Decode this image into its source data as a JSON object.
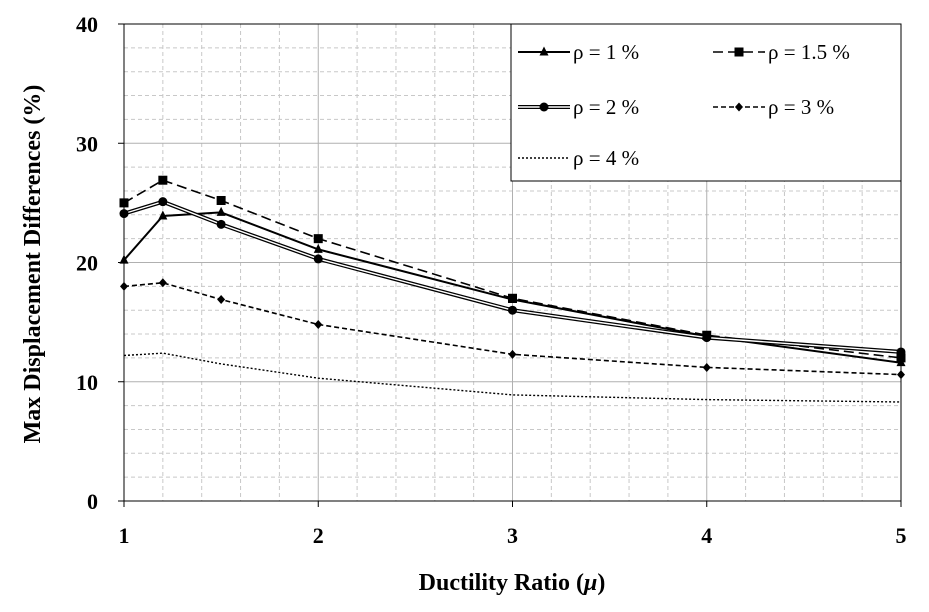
{
  "chart_data": {
    "type": "line",
    "title": "",
    "xlabel": "Ductility Ratio",
    "xlabel_symbol": "μ",
    "ylabel": "Max Displacement Differences (%)",
    "xlim": [
      1,
      5
    ],
    "ylim": [
      0,
      40
    ],
    "xticks": [
      "1",
      "2",
      "3",
      "4",
      "5"
    ],
    "yticks": [
      "0",
      "10",
      "20",
      "30",
      "40"
    ],
    "grid": true,
    "legend_position": "top-right",
    "series": [
      {
        "name": "ρ = 1 %",
        "marker": "triangle",
        "dash": "solid",
        "x": [
          1,
          1.2,
          1.5,
          2,
          3,
          4,
          5
        ],
        "y": [
          20.2,
          23.9,
          24.2,
          21.1,
          16.9,
          13.8,
          11.6
        ]
      },
      {
        "name": "ρ = 1.5 %",
        "marker": "square",
        "dash": "long-dash",
        "x": [
          1,
          1.2,
          1.5,
          2,
          3,
          4,
          5
        ],
        "y": [
          25.0,
          26.9,
          25.2,
          22.0,
          17.0,
          13.9,
          12.0
        ]
      },
      {
        "name": "ρ = 2 %",
        "marker": "circle",
        "dash": "double",
        "x": [
          1,
          1.2,
          1.5,
          2,
          3,
          4,
          5
        ],
        "y": [
          24.1,
          25.1,
          23.2,
          20.3,
          16.0,
          13.7,
          12.5
        ]
      },
      {
        "name": "ρ = 3 %",
        "marker": "diamond",
        "dash": "short-dash",
        "x": [
          1,
          1.2,
          1.5,
          2,
          3,
          4,
          5
        ],
        "y": [
          18.0,
          18.3,
          16.9,
          14.8,
          12.3,
          11.2,
          10.6
        ]
      },
      {
        "name": "ρ = 4 %",
        "marker": "none",
        "dash": "dotted",
        "x": [
          1,
          1.2,
          1.5,
          2,
          3,
          4,
          5
        ],
        "y": [
          12.2,
          12.4,
          11.5,
          10.3,
          8.9,
          8.5,
          8.3
        ]
      }
    ]
  }
}
